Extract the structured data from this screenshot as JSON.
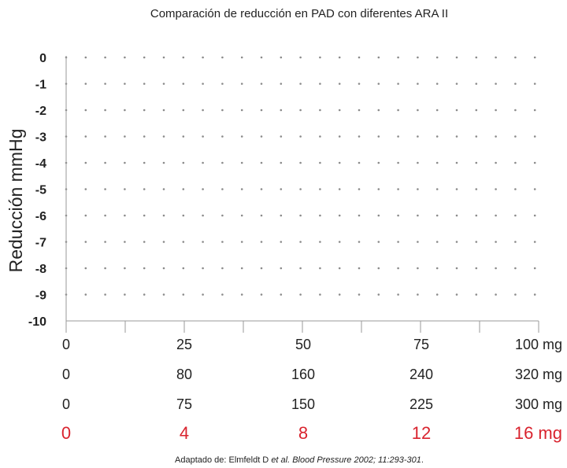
{
  "chart_data": {
    "type": "scatter",
    "title": "Comparación de reducción en PAD con diferentes ARA II",
    "ylabel": "Reducción mmHg",
    "ylim": [
      -10,
      0
    ],
    "yticks": [
      "0",
      "-1",
      "-2",
      "-3",
      "-4",
      "-5",
      "-6",
      "-7",
      "-8",
      "-9",
      "-10"
    ],
    "grid": true,
    "x_scales": [
      {
        "ticks": [
          "0",
          "25",
          "50",
          "75",
          "100 mg"
        ],
        "highlight": false
      },
      {
        "ticks": [
          "0",
          "80",
          "160",
          "240",
          "320 mg"
        ],
        "highlight": false
      },
      {
        "ticks": [
          "0",
          "75",
          "150",
          "225",
          "300 mg"
        ],
        "highlight": false
      },
      {
        "ticks": [
          "0",
          "4",
          "8",
          "12",
          "16 mg"
        ],
        "highlight": true
      }
    ],
    "series": []
  },
  "colors": {
    "text": "#222222",
    "highlight": "#d9232e",
    "grid": "#8a8a8a",
    "axis": "#9a9a9a"
  },
  "source": {
    "prefix": "Adaptado de: Elmfeldt D ",
    "italic_middle": "et al. Blood Pressure 2002; 11:293-301",
    "suffix": "."
  }
}
